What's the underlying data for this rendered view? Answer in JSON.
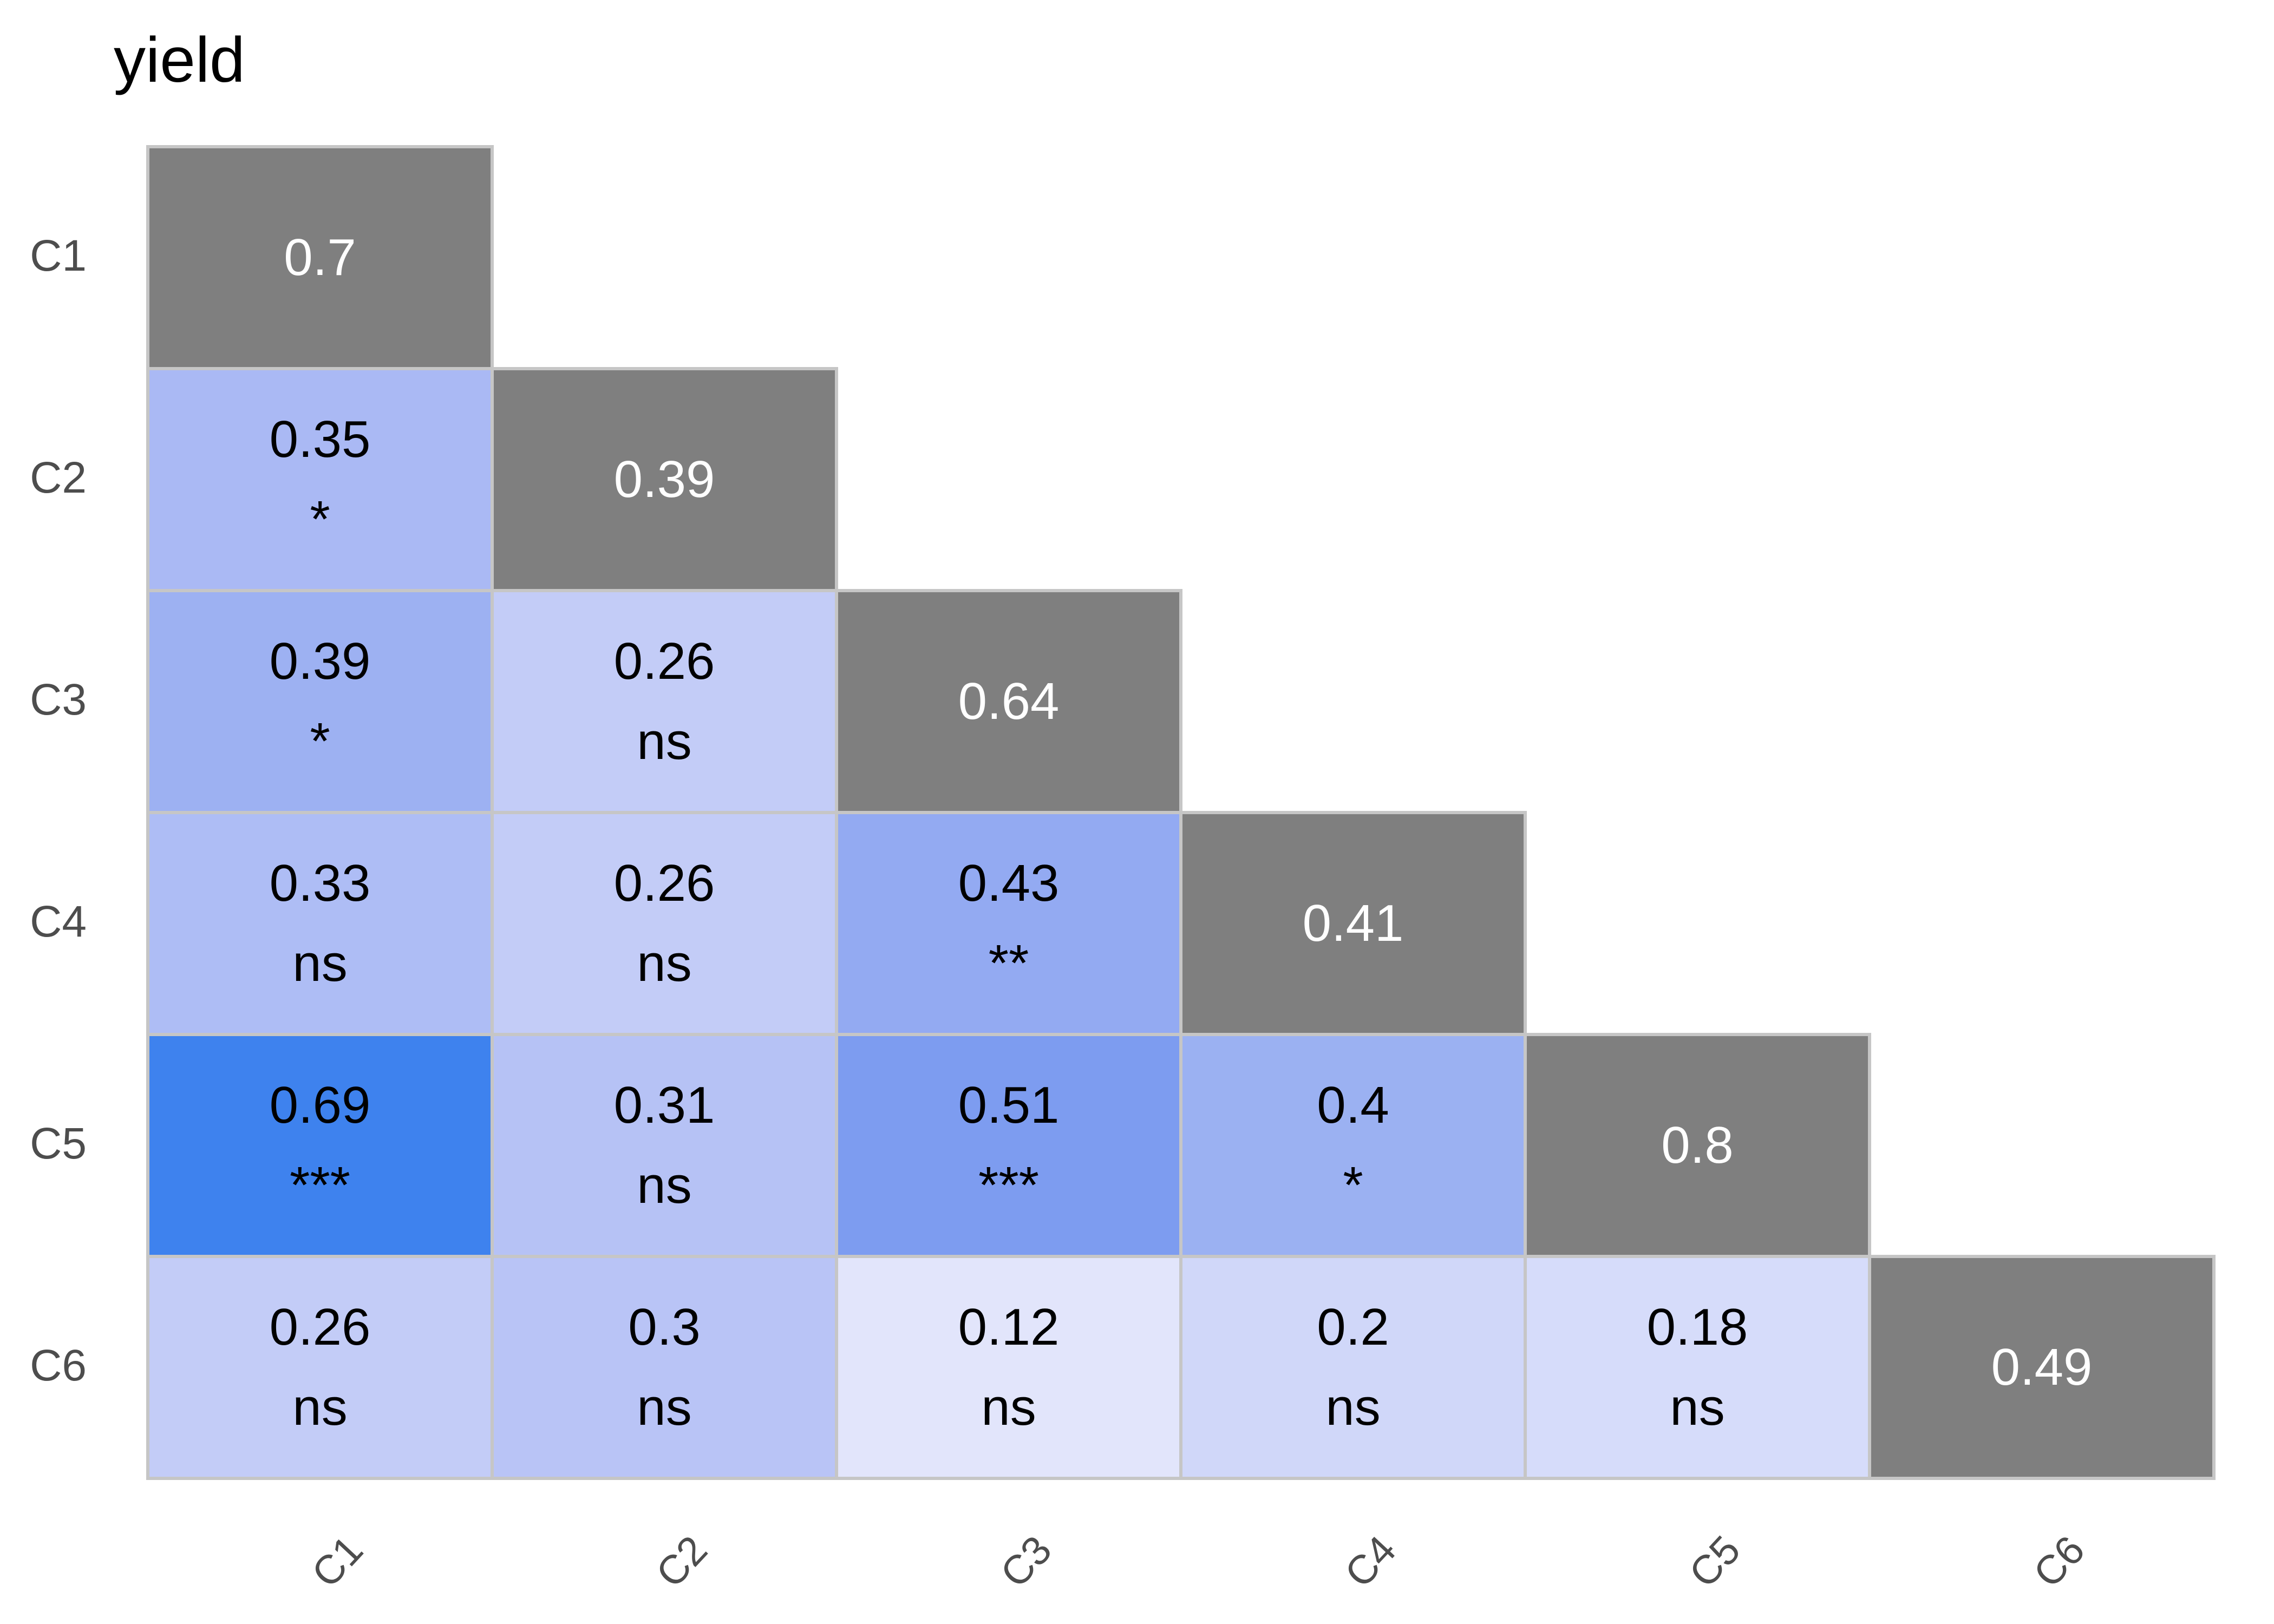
{
  "title": "yield",
  "axis": {
    "rows": [
      "C1",
      "C2",
      "C3",
      "C4",
      "C5",
      "C6"
    ],
    "cols": [
      "C1",
      "C2",
      "C3",
      "C4",
      "C5",
      "C6"
    ]
  },
  "palette": {
    "background": "#ffffff",
    "title_text": "#000000",
    "axis_text": "#4d4d4d",
    "cell_border": "#c6c6c6",
    "diagonal_bg": "#7f7f7f",
    "diagonal_text": "#ffffff",
    "cell_text": "#000000",
    "low_color": "#e2e5fb",
    "high_color": "#3e82ee"
  },
  "cells": [
    {
      "row": 0,
      "col": 0,
      "value": "0.7",
      "sig": "",
      "bg": "#7f7f7f",
      "fg": "#ffffff",
      "diagonal": true
    },
    {
      "row": 1,
      "col": 0,
      "value": "0.35",
      "sig": "*",
      "bg": "#aab9f4",
      "fg": "#000000",
      "diagonal": false
    },
    {
      "row": 1,
      "col": 1,
      "value": "0.39",
      "sig": "",
      "bg": "#7f7f7f",
      "fg": "#ffffff",
      "diagonal": true
    },
    {
      "row": 2,
      "col": 0,
      "value": "0.39",
      "sig": "*",
      "bg": "#9db1f2",
      "fg": "#000000",
      "diagonal": false
    },
    {
      "row": 2,
      "col": 1,
      "value": "0.26",
      "sig": "ns",
      "bg": "#c3ccf7",
      "fg": "#000000",
      "diagonal": false
    },
    {
      "row": 2,
      "col": 2,
      "value": "0.64",
      "sig": "",
      "bg": "#7f7f7f",
      "fg": "#ffffff",
      "diagonal": true
    },
    {
      "row": 3,
      "col": 0,
      "value": "0.33",
      "sig": "ns",
      "bg": "#aebdf5",
      "fg": "#000000",
      "diagonal": false
    },
    {
      "row": 3,
      "col": 1,
      "value": "0.26",
      "sig": "ns",
      "bg": "#c3ccf7",
      "fg": "#000000",
      "diagonal": false
    },
    {
      "row": 3,
      "col": 2,
      "value": "0.43",
      "sig": "**",
      "bg": "#93aaf2",
      "fg": "#000000",
      "diagonal": false
    },
    {
      "row": 3,
      "col": 3,
      "value": "0.41",
      "sig": "",
      "bg": "#7f7f7f",
      "fg": "#ffffff",
      "diagonal": true
    },
    {
      "row": 4,
      "col": 0,
      "value": "0.69",
      "sig": "***",
      "bg": "#3e82ee",
      "fg": "#000000",
      "diagonal": false
    },
    {
      "row": 4,
      "col": 1,
      "value": "0.31",
      "sig": "ns",
      "bg": "#b6c2f5",
      "fg": "#000000",
      "diagonal": false
    },
    {
      "row": 4,
      "col": 2,
      "value": "0.51",
      "sig": "***",
      "bg": "#7d9cf0",
      "fg": "#000000",
      "diagonal": false
    },
    {
      "row": 4,
      "col": 3,
      "value": "0.4",
      "sig": "*",
      "bg": "#9bb1f2",
      "fg": "#000000",
      "diagonal": false
    },
    {
      "row": 4,
      "col": 4,
      "value": "0.8",
      "sig": "",
      "bg": "#7f7f7f",
      "fg": "#ffffff",
      "diagonal": true
    },
    {
      "row": 5,
      "col": 0,
      "value": "0.26",
      "sig": "ns",
      "bg": "#c3ccf7",
      "fg": "#000000",
      "diagonal": false
    },
    {
      "row": 5,
      "col": 1,
      "value": "0.3",
      "sig": "ns",
      "bg": "#b9c4f6",
      "fg": "#000000",
      "diagonal": false
    },
    {
      "row": 5,
      "col": 2,
      "value": "0.12",
      "sig": "ns",
      "bg": "#e2e5fb",
      "fg": "#000000",
      "diagonal": false
    },
    {
      "row": 5,
      "col": 3,
      "value": "0.2",
      "sig": "ns",
      "bg": "#d0d7f9",
      "fg": "#000000",
      "diagonal": false
    },
    {
      "row": 5,
      "col": 4,
      "value": "0.18",
      "sig": "ns",
      "bg": "#d6dcfa",
      "fg": "#000000",
      "diagonal": false
    },
    {
      "row": 5,
      "col": 5,
      "value": "0.49",
      "sig": "",
      "bg": "#7f7f7f",
      "fg": "#ffffff",
      "diagonal": true
    }
  ],
  "chart_data": {
    "type": "heatmap",
    "title": "yield",
    "subtitle": "",
    "rows": [
      "C1",
      "C2",
      "C3",
      "C4",
      "C5",
      "C6"
    ],
    "cols": [
      "C1",
      "C2",
      "C3",
      "C4",
      "C5",
      "C6"
    ],
    "layout": "lower-triangle correlation matrix; diagonal cells gray with white values, off-diagonal cells blue-scaled by correlation with significance label below value",
    "matrix_lower_triangle": [
      [
        0.7
      ],
      [
        0.35,
        0.39
      ],
      [
        0.39,
        0.26,
        0.64
      ],
      [
        0.33,
        0.26,
        0.43,
        0.41
      ],
      [
        0.69,
        0.31,
        0.51,
        0.4,
        0.8
      ],
      [
        0.26,
        0.3,
        0.12,
        0.2,
        0.18,
        0.49
      ]
    ],
    "significance_lower_triangle": [
      [
        null
      ],
      [
        "*",
        null
      ],
      [
        "*",
        "ns",
        null
      ],
      [
        "ns",
        "ns",
        "**",
        null
      ],
      [
        "***",
        "ns",
        "***",
        "*",
        null
      ],
      [
        "ns",
        "ns",
        "ns",
        "ns",
        "ns",
        null
      ]
    ],
    "color_scale": {
      "min_value": 0,
      "max_value": 1,
      "min_color": "#ffffff",
      "max_color": "#3e82ee",
      "diagonal_color": "#7f7f7f"
    },
    "legend": "none",
    "x_tick_angle_deg": -47,
    "grid": false
  }
}
